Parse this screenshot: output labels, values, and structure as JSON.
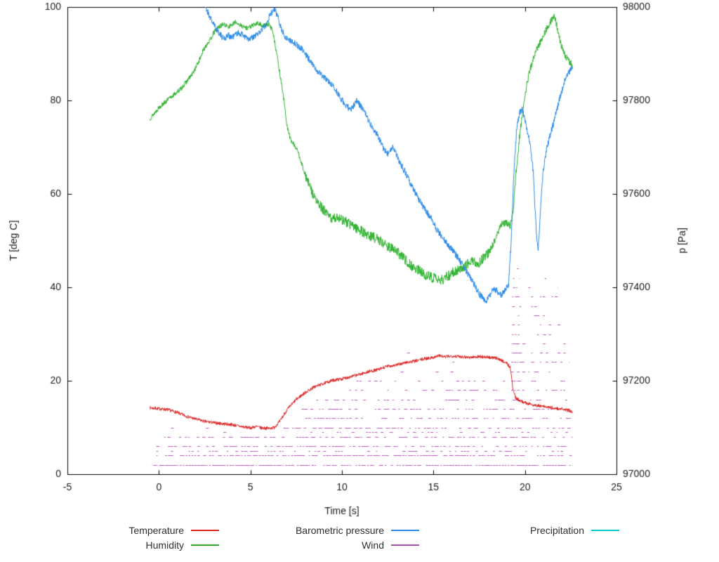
{
  "chart_data": {
    "type": "line",
    "title": "",
    "xlabel": "Time [s]",
    "ylabel_left": "T [deg C]",
    "ylabel_right": "p [Pa]",
    "xlim": [
      -5,
      25
    ],
    "ylim_left": [
      0,
      100
    ],
    "ylim_right": [
      97000,
      98000
    ],
    "xticks": [
      -5,
      0,
      5,
      10,
      15,
      20,
      25
    ],
    "yticks_left": [
      0,
      20,
      40,
      60,
      80,
      100
    ],
    "yticks_right": [
      97000,
      97200,
      97400,
      97600,
      97800,
      98000
    ],
    "grid": false,
    "legend_position": "below",
    "series": [
      {
        "name": "Temperature",
        "color": "#dd2222",
        "axis": "left",
        "seed": 7,
        "noise_bands": [
          [
            -1,
            25,
            0.35
          ]
        ],
        "x": [
          -0.5,
          0,
          0.5,
          1,
          1.5,
          2,
          2.5,
          3,
          3.5,
          4,
          4.5,
          5,
          5.3,
          5.6,
          6,
          6.3,
          6.6,
          7,
          7.5,
          8,
          8.5,
          9,
          9.5,
          10,
          10.5,
          11,
          11.5,
          12,
          12.5,
          13,
          13.5,
          14,
          14.5,
          15,
          15.3,
          15.6,
          16,
          16.5,
          17,
          17.5,
          18,
          18.5,
          19,
          19.2,
          19.35,
          19.5,
          19.8,
          20,
          20.5,
          21,
          21.5,
          22,
          22.3,
          22.6
        ],
        "y": [
          14.2,
          14.0,
          13.8,
          13.2,
          12.4,
          11.8,
          11.3,
          11.0,
          10.8,
          10.6,
          10.2,
          9.9,
          10.2,
          9.9,
          9.8,
          10.0,
          11.3,
          13.8,
          16.0,
          17.5,
          18.7,
          19.4,
          20.1,
          20.4,
          20.9,
          21.4,
          22.0,
          22.4,
          23.1,
          23.4,
          23.9,
          24.2,
          24.7,
          25.0,
          25.4,
          25.1,
          25.3,
          25.2,
          25.0,
          25.2,
          25.0,
          24.8,
          23.8,
          22.8,
          18.0,
          16.3,
          15.6,
          15.3,
          14.8,
          14.5,
          14.2,
          13.9,
          13.7,
          13.4
        ]
      },
      {
        "name": "Humidity",
        "color": "#2eb22e",
        "axis": "left",
        "seed": 13,
        "noise_bands": [
          [
            -1,
            8,
            0.5
          ],
          [
            8,
            18,
            1.1
          ],
          [
            18,
            25,
            0.7
          ]
        ],
        "x": [
          -0.5,
          -0.2,
          0,
          0.3,
          0.6,
          0.9,
          1.2,
          1.5,
          1.8,
          2.0,
          2.2,
          2.4,
          2.6,
          2.8,
          3.0,
          3.2,
          3.5,
          3.8,
          4.0,
          4.2,
          4.5,
          4.8,
          5.1,
          5.4,
          5.7,
          6.0,
          6.2,
          6.4,
          6.6,
          6.8,
          7.0,
          7.2,
          7.4,
          7.6,
          7.8,
          8.0,
          8.3,
          8.6,
          8.9,
          9.2,
          9.5,
          9.8,
          10.1,
          10.4,
          10.7,
          11.0,
          11.4,
          11.8,
          12.2,
          12.6,
          13.0,
          13.4,
          13.8,
          14.2,
          14.6,
          15.0,
          15.4,
          15.8,
          16.2,
          16.6,
          17.0,
          17.4,
          17.8,
          18.1,
          18.4,
          18.7,
          19.0,
          19.2,
          19.35,
          19.5,
          19.7,
          19.9,
          20.1,
          20.3,
          20.6,
          20.9,
          21.2,
          21.4,
          21.6,
          21.8,
          22.0,
          22.2,
          22.4,
          22.6
        ],
        "y": [
          76,
          77.5,
          78.5,
          79.5,
          80.5,
          81.5,
          82.5,
          84,
          85.5,
          87,
          88.5,
          90.5,
          92,
          93,
          94.5,
          95.5,
          96.3,
          95.8,
          96.2,
          96.8,
          96.0,
          95.5,
          96.0,
          96.5,
          96.0,
          96.3,
          95.2,
          91,
          86,
          81,
          74.5,
          71.5,
          70.5,
          69,
          66.5,
          64,
          61,
          58.5,
          57,
          55.5,
          54.5,
          55.2,
          54.2,
          53.6,
          53.0,
          52.2,
          51.2,
          50.6,
          49.6,
          48.6,
          47.6,
          46.2,
          44.6,
          43.6,
          42.6,
          42.0,
          41.4,
          42.4,
          43.6,
          44.2,
          45.6,
          45.0,
          46.4,
          48,
          50.5,
          53.5,
          53.8,
          53.2,
          56,
          64,
          72,
          78.5,
          83.5,
          87,
          90.5,
          93,
          95.5,
          96.8,
          98.3,
          95,
          91.5,
          89.5,
          88.5,
          87.5
        ]
      },
      {
        "name": "Barometric pressure",
        "color": "#2a8ae6",
        "axis": "right",
        "seed": 21,
        "noise_bands": [
          [
            -1,
            25,
            7
          ]
        ],
        "x": [
          2.45,
          2.6,
          2.8,
          3.0,
          3.2,
          3.4,
          3.6,
          3.8,
          4.0,
          4.3,
          4.6,
          4.9,
          5.2,
          5.5,
          5.8,
          6.1,
          6.3,
          6.5,
          6.7,
          6.9,
          7.1,
          7.3,
          7.5,
          7.8,
          8.0,
          8.3,
          8.6,
          9.0,
          9.3,
          9.6,
          9.9,
          10.2,
          10.5,
          10.8,
          11.0,
          11.3,
          11.6,
          11.9,
          12.2,
          12.5,
          12.8,
          13.1,
          13.4,
          13.7,
          14.0,
          14.3,
          14.6,
          14.9,
          15.2,
          15.5,
          15.8,
          16.1,
          16.4,
          16.7,
          17.0,
          17.3,
          17.5,
          17.7,
          17.9,
          18.1,
          18.3,
          18.5,
          18.7,
          18.9,
          19.1,
          19.25,
          19.4,
          19.55,
          19.7,
          19.85,
          20.0,
          20.15,
          20.3,
          20.45,
          20.55,
          20.65,
          20.72,
          20.8,
          20.9,
          21.0,
          21.2,
          21.4,
          21.6,
          21.8,
          22.0,
          22.2,
          22.4,
          22.6
        ],
        "y": [
          98015,
          97995,
          97978,
          97962,
          97950,
          97938,
          97933,
          97940,
          97935,
          97945,
          97940,
          97930,
          97936,
          97946,
          97960,
          97985,
          97995,
          97980,
          97952,
          97936,
          97930,
          97926,
          97920,
          97910,
          97900,
          97882,
          97866,
          97850,
          97840,
          97826,
          97806,
          97790,
          97780,
          97800,
          97790,
          97770,
          97746,
          97730,
          97702,
          97686,
          97700,
          97672,
          97650,
          97626,
          97602,
          97582,
          97562,
          97546,
          97522,
          97506,
          97490,
          97476,
          97460,
          97440,
          97422,
          97400,
          97386,
          97376,
          97370,
          97384,
          97400,
          97390,
          97384,
          97394,
          97404,
          97500,
          97650,
          97740,
          97775,
          97780,
          97760,
          97730,
          97700,
          97650,
          97570,
          97500,
          97480,
          97530,
          97600,
          97650,
          97700,
          97730,
          97756,
          97790,
          97820,
          97845,
          97860,
          97870
        ]
      },
      {
        "name": "Wind",
        "color": "#b34fb3",
        "axis": "left",
        "seed": 33,
        "style": "dashes",
        "levels": [
          {
            "y": 2,
            "seg": [
              [
                -0.3,
                22.6,
                0.9
              ]
            ]
          },
          {
            "y": 4,
            "seg": [
              [
                -0.3,
                22.6,
                0.85
              ]
            ]
          },
          {
            "y": 5,
            "seg": [
              [
                -0.3,
                22.5,
                0.3
              ]
            ]
          },
          {
            "y": 6,
            "seg": [
              [
                -0.3,
                22.6,
                0.6
              ]
            ]
          },
          {
            "y": 8,
            "seg": [
              [
                0.3,
                22.6,
                0.5
              ]
            ]
          },
          {
            "y": 9,
            "seg": [
              [
                0.8,
                4.5,
                0.12
              ],
              [
                7.0,
                22.5,
                0.3
              ]
            ]
          },
          {
            "y": 10,
            "seg": [
              [
                0.5,
                3.0,
                0.15
              ],
              [
                6.8,
                22.5,
                0.55
              ]
            ]
          },
          {
            "y": 12,
            "seg": [
              [
                1.5,
                2.5,
                0.05
              ],
              [
                7.2,
                22.5,
                0.5
              ]
            ]
          },
          {
            "y": 14,
            "seg": [
              [
                7.8,
                22.5,
                0.45
              ]
            ]
          },
          {
            "y": 16,
            "seg": [
              [
                8.6,
                22.5,
                0.4
              ]
            ]
          },
          {
            "y": 18,
            "seg": [
              [
                9.6,
                19.2,
                0.3
              ],
              [
                19.25,
                19.7,
                0.9
              ],
              [
                19.7,
                22.4,
                0.45
              ]
            ]
          },
          {
            "y": 20,
            "seg": [
              [
                10.8,
                19.0,
                0.22
              ],
              [
                19.25,
                19.7,
                0.85
              ],
              [
                19.7,
                22.4,
                0.4
              ]
            ]
          },
          {
            "y": 22,
            "seg": [
              [
                11.6,
                18.0,
                0.1
              ],
              [
                19.25,
                19.7,
                0.8
              ],
              [
                19.7,
                22.45,
                0.35
              ]
            ]
          },
          {
            "y": 24,
            "seg": [
              [
                12.2,
                17.5,
                0.08
              ],
              [
                19.25,
                19.7,
                0.8
              ],
              [
                19.7,
                22.45,
                0.35
              ]
            ]
          },
          {
            "y": 26,
            "seg": [
              [
                12.6,
                16.5,
                0.05
              ],
              [
                19.3,
                19.7,
                0.75
              ],
              [
                19.7,
                22.3,
                0.3
              ]
            ]
          },
          {
            "y": 28,
            "seg": [
              [
                11.9,
                15.8,
                0.05
              ],
              [
                19.3,
                19.7,
                0.7
              ],
              [
                19.7,
                22.3,
                0.28
              ]
            ]
          },
          {
            "y": 30,
            "seg": [
              [
                10.4,
                13.6,
                0.04
              ],
              [
                19.3,
                19.7,
                0.65
              ],
              [
                19.7,
                22.1,
                0.25
              ]
            ]
          },
          {
            "y": 32,
            "seg": [
              [
                19.3,
                19.7,
                0.6
              ],
              [
                19.7,
                22.1,
                0.22
              ]
            ]
          },
          {
            "y": 34,
            "seg": [
              [
                19.3,
                19.7,
                0.55
              ],
              [
                19.7,
                22.0,
                0.2
              ]
            ]
          },
          {
            "y": 36,
            "seg": [
              [
                19.3,
                19.7,
                0.5
              ],
              [
                19.7,
                21.95,
                0.17
              ]
            ]
          },
          {
            "y": 38,
            "seg": [
              [
                19.3,
                19.7,
                0.45
              ],
              [
                19.7,
                21.9,
                0.15
              ]
            ]
          },
          {
            "y": 40,
            "seg": [
              [
                19.35,
                19.7,
                0.4
              ],
              [
                19.7,
                21.8,
                0.12
              ]
            ]
          },
          {
            "y": 42,
            "seg": [
              [
                19.35,
                19.7,
                0.3
              ],
              [
                19.8,
                21.7,
                0.1
              ]
            ]
          },
          {
            "y": 44,
            "seg": [
              [
                19.4,
                19.7,
                0.2
              ],
              [
                19.9,
                21.6,
                0.08
              ]
            ]
          }
        ]
      },
      {
        "name": "Precipitation",
        "color": "#00c7c7",
        "axis": "left",
        "seed": 44,
        "noise_bands": [],
        "x": [],
        "y": []
      }
    ]
  }
}
